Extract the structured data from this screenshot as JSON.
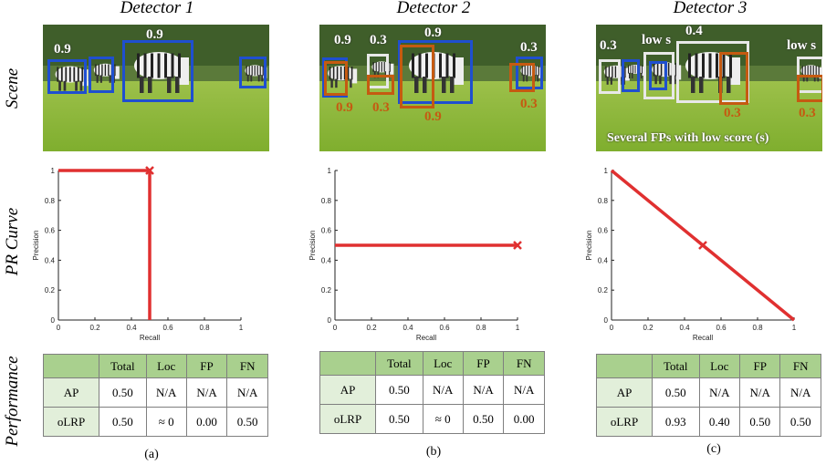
{
  "row_labels": {
    "scene": "Scene",
    "pr_curve": "PR Curve",
    "performance": "Performance"
  },
  "colors": {
    "tp_box": "#1f4fd0",
    "fp_box": "#c55a11",
    "white_box": "#e8e8e8",
    "curve": "#e03030",
    "header_green": "#a9d08e",
    "row_green": "#e2efda"
  },
  "detectors": [
    {
      "title": "Detector 1",
      "caption": "(a)",
      "scene": {
        "labels": [
          {
            "text": "0.9",
            "style": "w"
          },
          {
            "text": "0.9",
            "style": "w"
          }
        ],
        "note": ""
      },
      "pr": {
        "xlabel": "Recall",
        "ylabel": "Precision",
        "xticks": [
          "0",
          "0.2",
          "0.4",
          "0.6",
          "0.8",
          "1"
        ],
        "yticks": [
          "0",
          "0.2",
          "0.4",
          "0.6",
          "0.8",
          "1"
        ],
        "curve": [
          [
            0,
            1
          ],
          [
            0.5,
            1
          ],
          [
            0.5,
            0
          ]
        ],
        "marker": [
          0.5,
          1
        ]
      },
      "table": {
        "header": [
          "Total",
          "Loc",
          "FP",
          "FN"
        ],
        "rows": [
          {
            "name": "AP",
            "values": [
              "0.50",
              "N/A",
              "N/A",
              "N/A"
            ]
          },
          {
            "name": "oLRP",
            "values": [
              "0.50",
              "≈ 0",
              "0.00",
              "0.50"
            ]
          }
        ]
      }
    },
    {
      "title": "Detector 2",
      "caption": "(b)",
      "scene": {
        "labels": [
          {
            "text": "0.9",
            "style": "w"
          },
          {
            "text": "0.3",
            "style": "w"
          },
          {
            "text": "0.9",
            "style": "w"
          },
          {
            "text": "0.3",
            "style": "w"
          },
          {
            "text": "0.9",
            "style": "o"
          },
          {
            "text": "0.3",
            "style": "o"
          },
          {
            "text": "0.9",
            "style": "o"
          },
          {
            "text": "0.3",
            "style": "o"
          }
        ],
        "note": ""
      },
      "pr": {
        "xlabel": "Recall",
        "ylabel": "Precision",
        "xticks": [
          "0",
          "0.2",
          "0.4",
          "0.6",
          "0.8",
          "1"
        ],
        "yticks": [
          "0",
          "0.2",
          "0.4",
          "0.6",
          "0.8",
          "1"
        ],
        "curve": [
          [
            0,
            0.5
          ],
          [
            1,
            0.5
          ]
        ],
        "marker": [
          1,
          0.5
        ]
      },
      "table": {
        "header": [
          "Total",
          "Loc",
          "FP",
          "FN"
        ],
        "rows": [
          {
            "name": "AP",
            "values": [
              "0.50",
              "N/A",
              "N/A",
              "N/A"
            ]
          },
          {
            "name": "oLRP",
            "values": [
              "0.50",
              "≈ 0",
              "0.50",
              "0.00"
            ]
          }
        ]
      }
    },
    {
      "title": "Detector 3",
      "caption": "(c)",
      "scene": {
        "labels": [
          {
            "text": "0.3",
            "style": "w"
          },
          {
            "text": "low s",
            "style": "w"
          },
          {
            "text": "0.4",
            "style": "w"
          },
          {
            "text": "low s",
            "style": "w"
          },
          {
            "text": "0.3",
            "style": "o"
          },
          {
            "text": "0.3",
            "style": "o"
          }
        ],
        "note": "Several FPs with low score (s)"
      },
      "pr": {
        "xlabel": "Recall",
        "ylabel": "Precision",
        "xticks": [
          "0",
          "0.2",
          "0.4",
          "0.6",
          "0.8",
          "1"
        ],
        "yticks": [
          "0",
          "0.2",
          "0.4",
          "0.6",
          "0.8",
          "1"
        ],
        "curve": [
          [
            0,
            1
          ],
          [
            0.5,
            0.5
          ],
          [
            1,
            0
          ]
        ],
        "marker": [
          0.5,
          0.5
        ]
      },
      "table": {
        "header": [
          "Total",
          "Loc",
          "FP",
          "FN"
        ],
        "rows": [
          {
            "name": "AP",
            "values": [
              "0.50",
              "N/A",
              "N/A",
              "N/A"
            ]
          },
          {
            "name": "oLRP",
            "values": [
              "0.93",
              "0.40",
              "0.50",
              "0.50"
            ]
          }
        ]
      }
    }
  ]
}
